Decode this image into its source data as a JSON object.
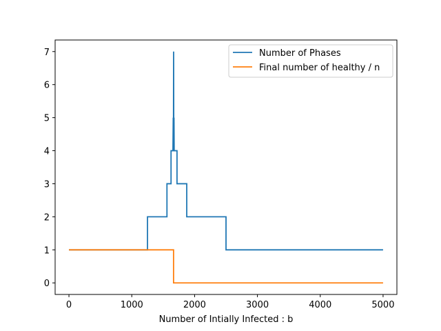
{
  "chart_data": {
    "type": "line",
    "title": "",
    "xlabel": "Number of Intially Infected : b",
    "ylabel": "",
    "xlim": [
      -220,
      5220
    ],
    "ylim": [
      -0.35,
      7.35
    ],
    "xticks": [
      0,
      1000,
      2000,
      3000,
      4000,
      5000
    ],
    "yticks": [
      0,
      1,
      2,
      3,
      4,
      5,
      6,
      7
    ],
    "xtick_labels": [
      "0",
      "1000",
      "2000",
      "3000",
      "4000",
      "5000"
    ],
    "ytick_labels": [
      "0",
      "1",
      "2",
      "3",
      "4",
      "5",
      "6",
      "7"
    ],
    "grid": false,
    "legend": "top-right",
    "series": [
      {
        "name": "Number of Phases",
        "color": "#1f77b4",
        "step": true,
        "x": [
          0,
          1250,
          1250,
          1560,
          1560,
          1625,
          1625,
          1655,
          1660,
          1663,
          1666,
          1669,
          1672,
          1675,
          1680,
          1680,
          1720,
          1720,
          1875,
          1875,
          2500,
          2500,
          5000
        ],
        "y": [
          1,
          1,
          2,
          2,
          3,
          3,
          4,
          4,
          5,
          4,
          7,
          4,
          5,
          4,
          4,
          4,
          4,
          3,
          3,
          2,
          2,
          1,
          1
        ]
      },
      {
        "name": "Final number of healthy / n",
        "color": "#ff7f0e",
        "step": true,
        "x": [
          0,
          1665,
          1665,
          5000
        ],
        "y": [
          1,
          1,
          0,
          0
        ]
      }
    ]
  }
}
